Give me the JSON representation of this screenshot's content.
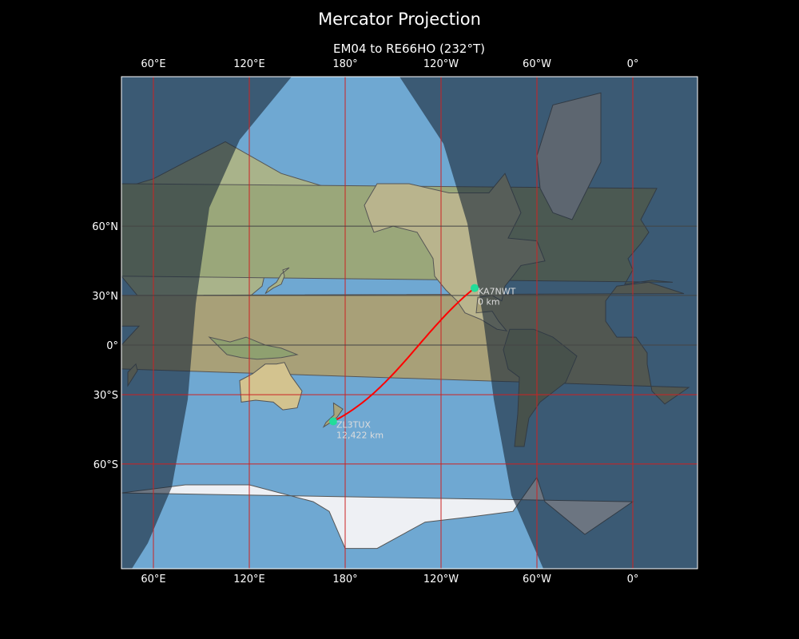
{
  "title": "Mercator Projection",
  "subtitle": "EM04 to RE66HO (232°T)",
  "map": {
    "projection": "Mercator",
    "central_longitude": -140,
    "lon_ticks": [
      "60°E",
      "120°E",
      "180°",
      "120°W",
      "60°W",
      "0°"
    ],
    "lat_ticks": [
      "60°N",
      "30°N",
      "0°",
      "30°S",
      "60°S"
    ],
    "gridline_color": "#cc2222",
    "path_color": "#ff0000",
    "marker_color": "#22dd99",
    "day_night_shading": true
  },
  "stations": [
    {
      "call": "KA7NWT",
      "distance": "0 km",
      "grid": "EM04",
      "lon": -99,
      "lat": 34
    },
    {
      "call": "ZL3TUX",
      "distance": "12,422 km",
      "grid": "RE66HO",
      "lon": 172.5,
      "lat": -43.5
    }
  ]
}
